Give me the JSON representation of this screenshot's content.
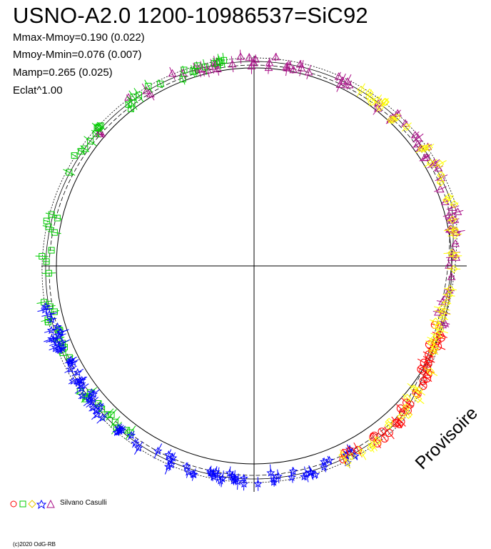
{
  "title": "USNO-A2.0 1200-10986537=SiC92",
  "stats": [
    "Mmax-Mmoy=0.190 (0.022)",
    "Mmoy-Mmin=0.076 (0.007)",
    "Mamp=0.265 (0.025)",
    "Eclat^1.00"
  ],
  "watermark": "Provisoire",
  "observer": "Silvano Casulli",
  "copyright": "(c)2020 OdG-RB",
  "colors": {
    "red": "#ff0000",
    "green": "#00cc00",
    "yellow": "#ffff00",
    "blue": "#0000ff",
    "purple": "#aa1188",
    "axes": "#000000"
  },
  "chart_data": {
    "type": "scatter",
    "coordinate_system": "polar phase diagram",
    "grid": false,
    "legend_placement": "bottom-left",
    "legend_markers": [
      "circle",
      "square",
      "diamond",
      "star",
      "triangle"
    ],
    "series": [
      {
        "marker": "triangle",
        "color": "#aa1188",
        "phase_range": [
          0.86,
          1.3
        ],
        "points": 80
      },
      {
        "marker": "square",
        "color": "#00cc00",
        "phase_range": [
          0.6,
          0.98
        ],
        "points": 60
      },
      {
        "marker": "star",
        "color": "#0000ff",
        "phase_range": [
          0.42,
          0.72
        ],
        "points": 95
      },
      {
        "marker": "circle",
        "color": "#ff0000",
        "phase_range": [
          0.3,
          0.44
        ],
        "points": 40
      },
      {
        "marker": "diamond",
        "color": "#ffff00",
        "phase_range": [
          0.08,
          0.44
        ],
        "points": 60
      }
    ]
  }
}
